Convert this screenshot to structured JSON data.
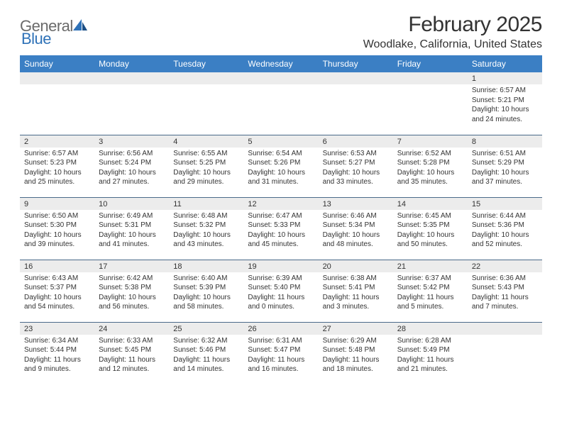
{
  "logo": {
    "word1": "General",
    "word2": "Blue"
  },
  "title": "February 2025",
  "location": "Woodlake, California, United States",
  "colors": {
    "header_bg": "#3b7fc4",
    "header_fg": "#ffffff",
    "daynum_bg": "#ececec",
    "row_divider": "#4a6a8a",
    "text": "#333333",
    "logo_gray": "#6a6a6a",
    "logo_blue": "#2f72b8",
    "page_bg": "#ffffff"
  },
  "typography": {
    "title_fontsize": 30,
    "location_fontsize": 16,
    "dayheader_fontsize": 12,
    "daynum_fontsize": 11,
    "body_fontsize": 10
  },
  "day_headers": [
    "Sunday",
    "Monday",
    "Tuesday",
    "Wednesday",
    "Thursday",
    "Friday",
    "Saturday"
  ],
  "weeks": [
    [
      {
        "empty": true
      },
      {
        "empty": true
      },
      {
        "empty": true
      },
      {
        "empty": true
      },
      {
        "empty": true
      },
      {
        "empty": true
      },
      {
        "n": "1",
        "sunrise": "Sunrise: 6:57 AM",
        "sunset": "Sunset: 5:21 PM",
        "daylight": "Daylight: 10 hours and 24 minutes."
      }
    ],
    [
      {
        "n": "2",
        "sunrise": "Sunrise: 6:57 AM",
        "sunset": "Sunset: 5:23 PM",
        "daylight": "Daylight: 10 hours and 25 minutes."
      },
      {
        "n": "3",
        "sunrise": "Sunrise: 6:56 AM",
        "sunset": "Sunset: 5:24 PM",
        "daylight": "Daylight: 10 hours and 27 minutes."
      },
      {
        "n": "4",
        "sunrise": "Sunrise: 6:55 AM",
        "sunset": "Sunset: 5:25 PM",
        "daylight": "Daylight: 10 hours and 29 minutes."
      },
      {
        "n": "5",
        "sunrise": "Sunrise: 6:54 AM",
        "sunset": "Sunset: 5:26 PM",
        "daylight": "Daylight: 10 hours and 31 minutes."
      },
      {
        "n": "6",
        "sunrise": "Sunrise: 6:53 AM",
        "sunset": "Sunset: 5:27 PM",
        "daylight": "Daylight: 10 hours and 33 minutes."
      },
      {
        "n": "7",
        "sunrise": "Sunrise: 6:52 AM",
        "sunset": "Sunset: 5:28 PM",
        "daylight": "Daylight: 10 hours and 35 minutes."
      },
      {
        "n": "8",
        "sunrise": "Sunrise: 6:51 AM",
        "sunset": "Sunset: 5:29 PM",
        "daylight": "Daylight: 10 hours and 37 minutes."
      }
    ],
    [
      {
        "n": "9",
        "sunrise": "Sunrise: 6:50 AM",
        "sunset": "Sunset: 5:30 PM",
        "daylight": "Daylight: 10 hours and 39 minutes."
      },
      {
        "n": "10",
        "sunrise": "Sunrise: 6:49 AM",
        "sunset": "Sunset: 5:31 PM",
        "daylight": "Daylight: 10 hours and 41 minutes."
      },
      {
        "n": "11",
        "sunrise": "Sunrise: 6:48 AM",
        "sunset": "Sunset: 5:32 PM",
        "daylight": "Daylight: 10 hours and 43 minutes."
      },
      {
        "n": "12",
        "sunrise": "Sunrise: 6:47 AM",
        "sunset": "Sunset: 5:33 PM",
        "daylight": "Daylight: 10 hours and 45 minutes."
      },
      {
        "n": "13",
        "sunrise": "Sunrise: 6:46 AM",
        "sunset": "Sunset: 5:34 PM",
        "daylight": "Daylight: 10 hours and 48 minutes."
      },
      {
        "n": "14",
        "sunrise": "Sunrise: 6:45 AM",
        "sunset": "Sunset: 5:35 PM",
        "daylight": "Daylight: 10 hours and 50 minutes."
      },
      {
        "n": "15",
        "sunrise": "Sunrise: 6:44 AM",
        "sunset": "Sunset: 5:36 PM",
        "daylight": "Daylight: 10 hours and 52 minutes."
      }
    ],
    [
      {
        "n": "16",
        "sunrise": "Sunrise: 6:43 AM",
        "sunset": "Sunset: 5:37 PM",
        "daylight": "Daylight: 10 hours and 54 minutes."
      },
      {
        "n": "17",
        "sunrise": "Sunrise: 6:42 AM",
        "sunset": "Sunset: 5:38 PM",
        "daylight": "Daylight: 10 hours and 56 minutes."
      },
      {
        "n": "18",
        "sunrise": "Sunrise: 6:40 AM",
        "sunset": "Sunset: 5:39 PM",
        "daylight": "Daylight: 10 hours and 58 minutes."
      },
      {
        "n": "19",
        "sunrise": "Sunrise: 6:39 AM",
        "sunset": "Sunset: 5:40 PM",
        "daylight": "Daylight: 11 hours and 0 minutes."
      },
      {
        "n": "20",
        "sunrise": "Sunrise: 6:38 AM",
        "sunset": "Sunset: 5:41 PM",
        "daylight": "Daylight: 11 hours and 3 minutes."
      },
      {
        "n": "21",
        "sunrise": "Sunrise: 6:37 AM",
        "sunset": "Sunset: 5:42 PM",
        "daylight": "Daylight: 11 hours and 5 minutes."
      },
      {
        "n": "22",
        "sunrise": "Sunrise: 6:36 AM",
        "sunset": "Sunset: 5:43 PM",
        "daylight": "Daylight: 11 hours and 7 minutes."
      }
    ],
    [
      {
        "n": "23",
        "sunrise": "Sunrise: 6:34 AM",
        "sunset": "Sunset: 5:44 PM",
        "daylight": "Daylight: 11 hours and 9 minutes."
      },
      {
        "n": "24",
        "sunrise": "Sunrise: 6:33 AM",
        "sunset": "Sunset: 5:45 PM",
        "daylight": "Daylight: 11 hours and 12 minutes."
      },
      {
        "n": "25",
        "sunrise": "Sunrise: 6:32 AM",
        "sunset": "Sunset: 5:46 PM",
        "daylight": "Daylight: 11 hours and 14 minutes."
      },
      {
        "n": "26",
        "sunrise": "Sunrise: 6:31 AM",
        "sunset": "Sunset: 5:47 PM",
        "daylight": "Daylight: 11 hours and 16 minutes."
      },
      {
        "n": "27",
        "sunrise": "Sunrise: 6:29 AM",
        "sunset": "Sunset: 5:48 PM",
        "daylight": "Daylight: 11 hours and 18 minutes."
      },
      {
        "n": "28",
        "sunrise": "Sunrise: 6:28 AM",
        "sunset": "Sunset: 5:49 PM",
        "daylight": "Daylight: 11 hours and 21 minutes."
      },
      {
        "empty": true
      }
    ]
  ]
}
